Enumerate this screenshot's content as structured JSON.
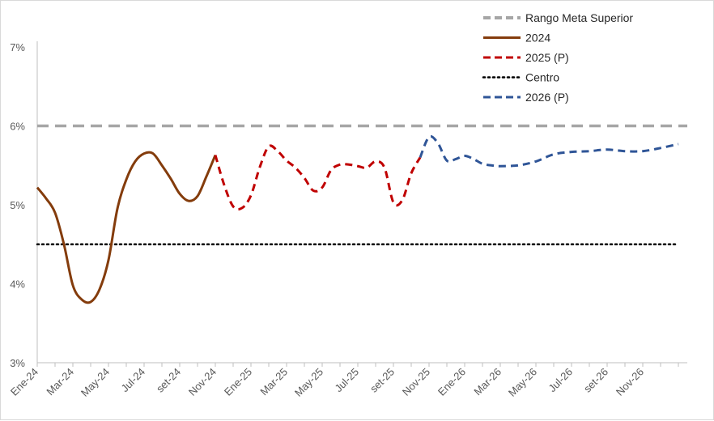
{
  "chart_data": {
    "type": "line",
    "title": "",
    "xlabel": "",
    "ylabel": "",
    "y_unit": "%",
    "ylim": [
      3,
      7
    ],
    "y_ticks": [
      "3%",
      "4%",
      "5%",
      "6%",
      "7%"
    ],
    "grid": false,
    "legend_position": "top-right",
    "x_tick_labels": [
      "Ene-24",
      "Mar-24",
      "May-24",
      "Jul-24",
      "set-24",
      "Nov-24",
      "Ene-25",
      "Mar-25",
      "May-25",
      "Jul-25",
      "set-25",
      "Nov-25",
      "Ene-26",
      "Mar-26",
      "May-26",
      "Jul-26",
      "set-26",
      "Nov-26"
    ],
    "series": [
      {
        "name": "Rango Meta Superior",
        "color": "#a6a6a6",
        "style": "dashed",
        "points": [
          [
            0,
            6.0
          ],
          [
            36.5,
            6.0
          ]
        ]
      },
      {
        "name": "2024",
        "color": "#843c0c",
        "style": "solid",
        "points": [
          [
            0,
            5.22
          ],
          [
            0.5,
            5.08
          ],
          [
            1,
            4.9
          ],
          [
            1.5,
            4.5
          ],
          [
            2,
            3.98
          ],
          [
            2.5,
            3.8
          ],
          [
            3,
            3.77
          ],
          [
            3.5,
            3.93
          ],
          [
            4,
            4.3
          ],
          [
            4.5,
            4.95
          ],
          [
            5,
            5.32
          ],
          [
            5.5,
            5.55
          ],
          [
            6,
            5.65
          ],
          [
            6.5,
            5.65
          ],
          [
            7,
            5.5
          ],
          [
            7.5,
            5.33
          ],
          [
            8,
            5.14
          ],
          [
            8.5,
            5.05
          ],
          [
            9,
            5.11
          ],
          [
            9.5,
            5.36
          ],
          [
            10,
            5.63
          ]
        ]
      },
      {
        "name": "2025 (P)",
        "color": "#c00000",
        "style": "dashed",
        "points": [
          [
            10,
            5.63
          ],
          [
            10.5,
            5.25
          ],
          [
            11,
            4.98
          ],
          [
            11.5,
            4.96
          ],
          [
            12,
            5.12
          ],
          [
            12.5,
            5.48
          ],
          [
            13,
            5.74
          ],
          [
            13.5,
            5.68
          ],
          [
            14,
            5.56
          ],
          [
            14.5,
            5.47
          ],
          [
            15,
            5.34
          ],
          [
            15.5,
            5.18
          ],
          [
            16,
            5.22
          ],
          [
            16.5,
            5.44
          ],
          [
            17,
            5.51
          ],
          [
            17.5,
            5.51
          ],
          [
            18,
            5.49
          ],
          [
            18.5,
            5.47
          ],
          [
            19,
            5.55
          ],
          [
            19.5,
            5.47
          ],
          [
            20,
            5.03
          ],
          [
            20.5,
            5.06
          ],
          [
            21,
            5.4
          ],
          [
            21.5,
            5.6
          ]
        ]
      },
      {
        "name": "Centro",
        "color": "#000000",
        "style": "dotted",
        "points": [
          [
            0,
            4.5
          ],
          [
            36,
            4.5
          ]
        ]
      },
      {
        "name": "2026 (P)",
        "color": "#2f5597",
        "style": "dashed",
        "points": [
          [
            21.5,
            5.6
          ],
          [
            22,
            5.86
          ],
          [
            22.5,
            5.78
          ],
          [
            23,
            5.56
          ],
          [
            23.5,
            5.58
          ],
          [
            24,
            5.62
          ],
          [
            24.5,
            5.58
          ],
          [
            25,
            5.52
          ],
          [
            25.5,
            5.5
          ],
          [
            26,
            5.49
          ],
          [
            27,
            5.5
          ],
          [
            28,
            5.55
          ],
          [
            29,
            5.64
          ],
          [
            30,
            5.67
          ],
          [
            31,
            5.68
          ],
          [
            32,
            5.7
          ],
          [
            33,
            5.68
          ],
          [
            34,
            5.68
          ],
          [
            35,
            5.72
          ],
          [
            36,
            5.77
          ]
        ]
      }
    ]
  }
}
